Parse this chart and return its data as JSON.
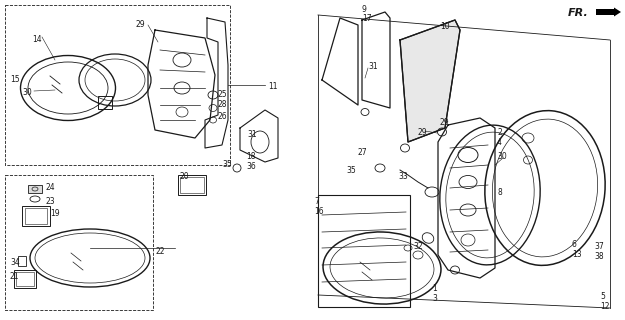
{
  "bg_color": "#ffffff",
  "line_color": "#1a1a1a",
  "fig_width": 6.25,
  "fig_height": 3.2,
  "dpi": 100
}
